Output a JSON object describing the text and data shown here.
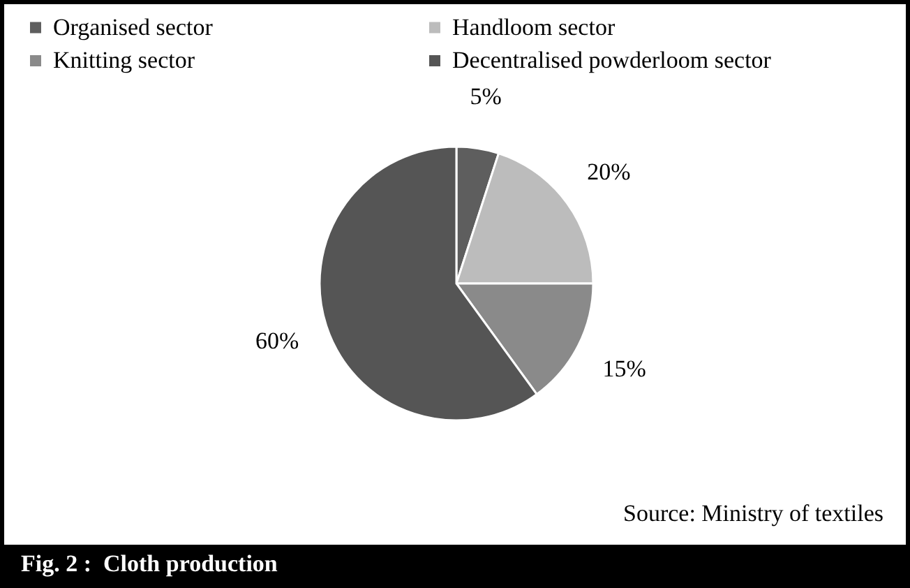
{
  "chart_data": {
    "type": "pie",
    "title": "Fig. 2 :  Cloth production",
    "categories": [
      "Organised sector",
      "Handloom sector",
      "Knitting sector",
      "Decentralised powderloom sector"
    ],
    "values": [
      5,
      20,
      15,
      60
    ],
    "colors": [
      "#5e5e5e",
      "#bcbcbc",
      "#8a8a8a",
      "#555555"
    ],
    "value_labels": [
      "5%",
      "20%",
      "15%",
      "60%"
    ],
    "legend": "top",
    "annotations": [
      "Source: Ministry of textiles"
    ]
  }
}
